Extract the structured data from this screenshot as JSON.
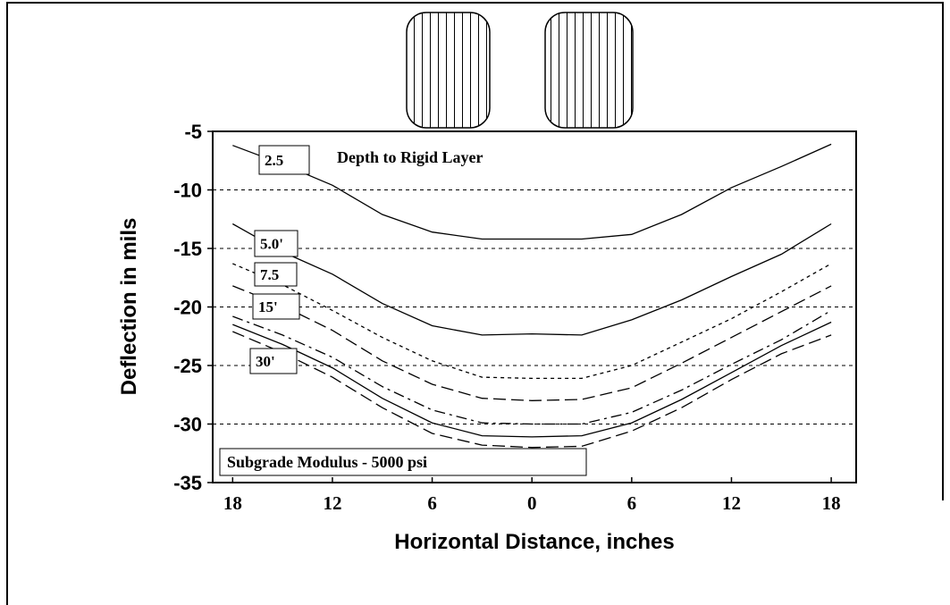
{
  "chart_data": {
    "type": "line",
    "title": "Depth to Rigid Layer",
    "annotation": "Subgrade Modulus - 5000 psi",
    "x_label": "Horizontal Distance, inches",
    "y_label": "Deflection in mils",
    "x": [
      -18,
      -15,
      -12,
      -9,
      -6,
      -3,
      0,
      3,
      6,
      9,
      12,
      15,
      18
    ],
    "xlim": [
      -19.2,
      19.5
    ],
    "ylim": [
      -35,
      -5
    ],
    "xticks": [
      {
        "value": -18,
        "label": "18"
      },
      {
        "value": -12,
        "label": "12"
      },
      {
        "value": -6,
        "label": "6"
      },
      0,
      6,
      12,
      18
    ],
    "yticks": [
      -5,
      -10,
      -15,
      -20,
      -25,
      -30,
      -35
    ],
    "grid": true,
    "series": [
      {
        "name": "2.5",
        "color": "#000000",
        "linestyle": "solid",
        "values": [
          -6.2,
          -7.8,
          -9.6,
          -12.1,
          -13.6,
          -14.2,
          -14.2,
          -14.2,
          -13.8,
          -12.1,
          -9.8,
          -8.0,
          -6.1
        ]
      },
      {
        "name": "5.0'",
        "color": "#000000",
        "linestyle": "solid",
        "values": [
          -12.9,
          -15.3,
          -17.2,
          -19.7,
          -21.6,
          -22.4,
          -22.3,
          -22.4,
          -21.1,
          -19.4,
          -17.4,
          -15.5,
          -12.9
        ]
      },
      {
        "name": "7.5",
        "color": "#000000",
        "linestyle": "dotted",
        "values": [
          -16.3,
          -18.1,
          -20.3,
          -22.6,
          -24.6,
          -26.0,
          -26.1,
          -26.1,
          -25.0,
          -23.0,
          -21.0,
          -18.7,
          -16.3
        ]
      },
      {
        "name": "15'",
        "color": "#000000",
        "linestyle": "dashed",
        "values": [
          -18.2,
          -19.9,
          -22.0,
          -24.6,
          -26.6,
          -27.8,
          -28.0,
          -27.9,
          -26.9,
          -24.8,
          -22.6,
          -20.4,
          -18.2
        ]
      },
      {
        "color": "#000000",
        "linestyle": "dashdot",
        "values": [
          -20.8,
          -22.4,
          -24.3,
          -26.8,
          -28.8,
          -29.9,
          -30.0,
          -30.0,
          -29.0,
          -27.1,
          -24.9,
          -22.8,
          -20.3
        ]
      },
      {
        "color": "#000000",
        "linestyle": "solid",
        "values": [
          -21.5,
          -23.2,
          -25.2,
          -27.8,
          -29.9,
          -31.0,
          -31.1,
          -31.0,
          -29.9,
          -27.9,
          -25.6,
          -23.3,
          -21.3
        ]
      },
      {
        "name": "30'",
        "color": "#000000",
        "linestyle": "dashed",
        "values": [
          -22.1,
          -23.9,
          -26.0,
          -28.6,
          -30.8,
          -31.8,
          -32.0,
          -31.9,
          -30.6,
          -28.6,
          -26.2,
          -24.0,
          -22.4
        ]
      }
    ]
  }
}
